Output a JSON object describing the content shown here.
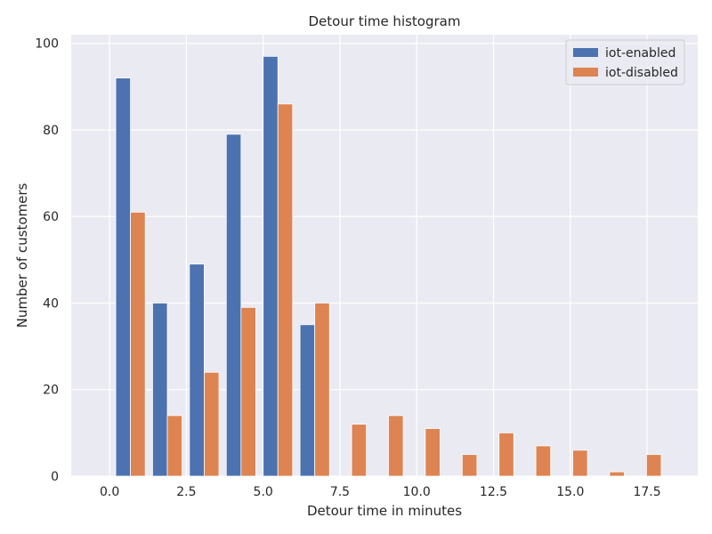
{
  "chart_data": {
    "type": "bar",
    "title": "Detour time histogram",
    "xlabel": "Detour time in minutes",
    "ylabel": "Number of customers",
    "xlim": [
      -1.25,
      19.15
    ],
    "ylim": [
      0,
      102
    ],
    "xticks": [
      0.0,
      2.5,
      5.0,
      7.5,
      10.0,
      12.5,
      15.0,
      17.5
    ],
    "xtick_labels": [
      "0.0",
      "2.5",
      "5.0",
      "7.5",
      "10.0",
      "12.5",
      "15.0",
      "17.5"
    ],
    "yticks": [
      0,
      20,
      40,
      60,
      80,
      100
    ],
    "ytick_labels": [
      "0",
      "20",
      "40",
      "60",
      "80",
      "100"
    ],
    "bin_edges": [
      -0.5,
      1.9,
      4.3,
      6.7,
      9.1,
      11.5,
      13.9,
      16.3,
      18.7
    ],
    "bin_edges_note": "",
    "grid": true,
    "legend_position": "top-right",
    "series": [
      {
        "name": "iot-enabled",
        "color": "#4C72B0",
        "x_start": [
          0.2,
          1.4,
          2.6,
          3.8,
          5.0,
          6.2
        ],
        "values": [
          92,
          40,
          49,
          79,
          97,
          35
        ]
      },
      {
        "name": "iot-disabled",
        "color": "#DD8452",
        "x_start": [
          0.68,
          1.88,
          3.08,
          4.28,
          5.48,
          6.68,
          7.88,
          9.08,
          10.28,
          11.48,
          12.68,
          13.88,
          15.08,
          16.28,
          17.48
        ],
        "values": [
          61,
          14,
          24,
          39,
          86,
          40,
          12,
          14,
          11,
          5,
          10,
          7,
          6,
          1,
          5
        ]
      }
    ]
  }
}
